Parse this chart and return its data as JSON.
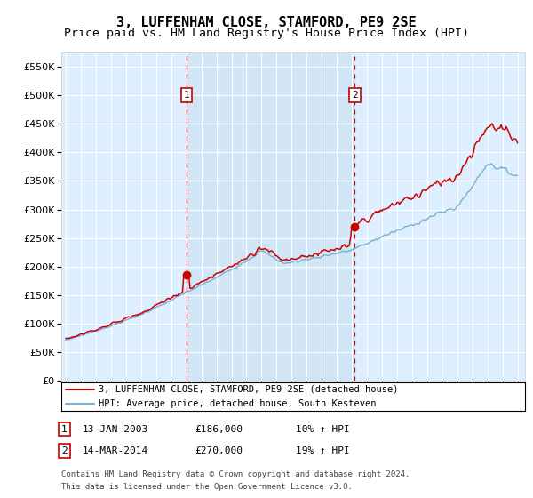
{
  "title": "3, LUFFENHAM CLOSE, STAMFORD, PE9 2SE",
  "subtitle": "Price paid vs. HM Land Registry's House Price Index (HPI)",
  "ylim": [
    0,
    575000
  ],
  "yticks": [
    0,
    50000,
    100000,
    150000,
    200000,
    250000,
    300000,
    350000,
    400000,
    450000,
    500000,
    550000
  ],
  "x_start_year": 1995,
  "x_end_year": 2025,
  "plot_bg": "#ddeeff",
  "hpi_color": "#7ab0d4",
  "price_color": "#cc0000",
  "marker1_year": 2003.04,
  "marker2_year": 2014.2,
  "marker1_price": 186000,
  "marker2_price": 270000,
  "marker1_label": "1",
  "marker2_label": "2",
  "marker1_date": "13-JAN-2003",
  "marker2_date": "14-MAR-2014",
  "marker1_pct": "10% ↑ HPI",
  "marker2_pct": "19% ↑ HPI",
  "marker1_price_str": "£186,000",
  "marker2_price_str": "£270,000",
  "legend_line1": "3, LUFFENHAM CLOSE, STAMFORD, PE9 2SE (detached house)",
  "legend_line2": "HPI: Average price, detached house, South Kesteven",
  "footnote1": "Contains HM Land Registry data © Crown copyright and database right 2024.",
  "footnote2": "This data is licensed under the Open Government Licence v3.0.",
  "title_fontsize": 11,
  "subtitle_fontsize": 9.5
}
